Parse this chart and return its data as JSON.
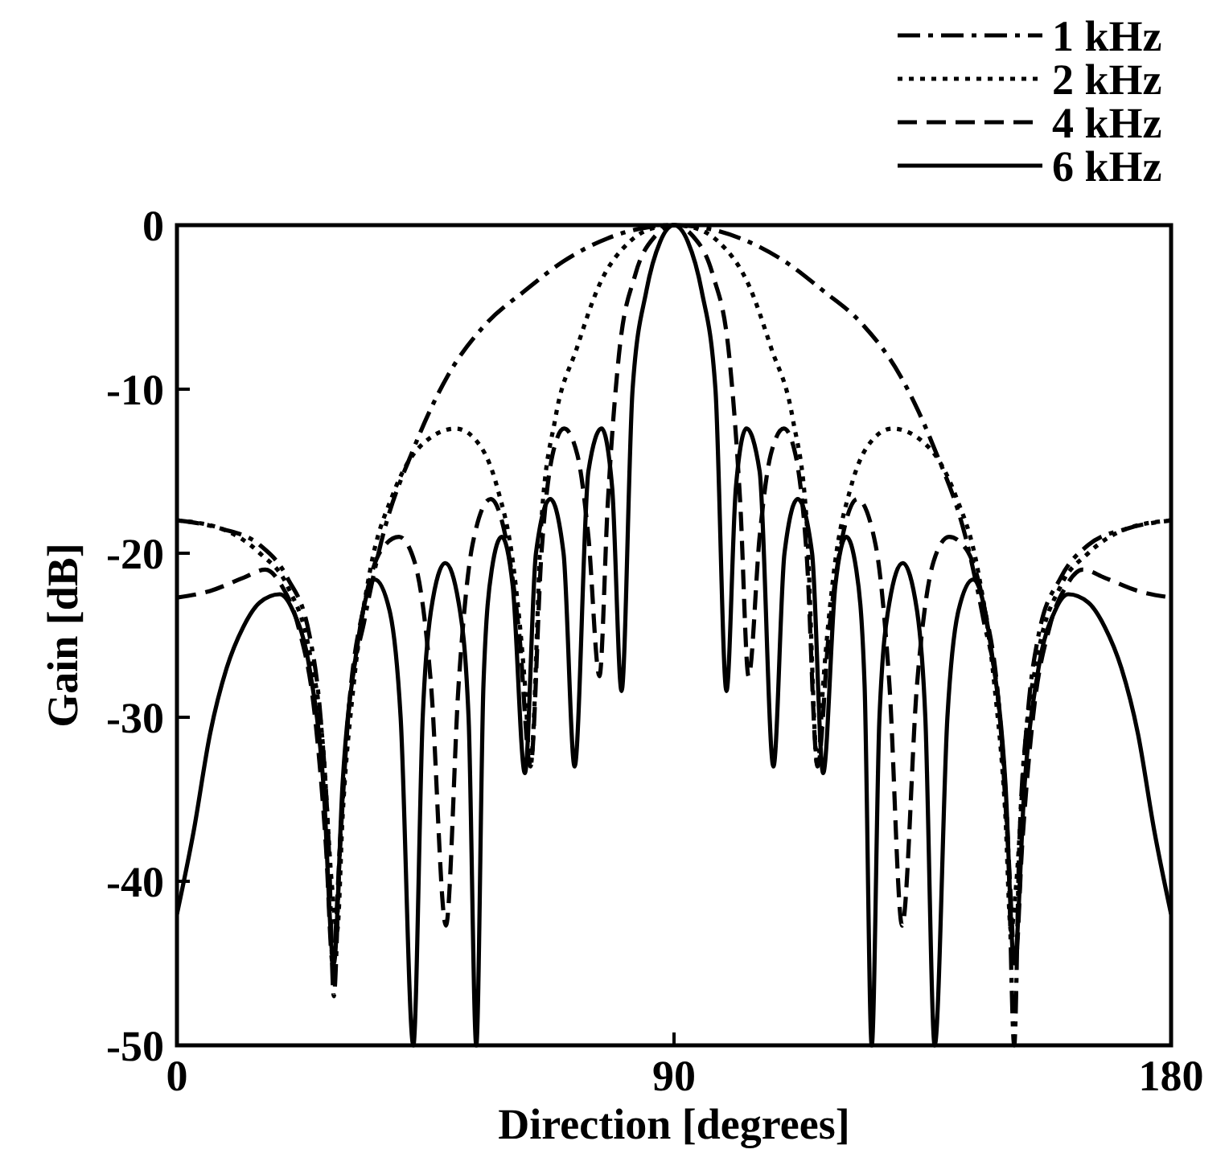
{
  "chart_data": {
    "type": "line",
    "xlabel": "Direction [degrees]",
    "ylabel": "Gain [dB]",
    "xlim": [
      0,
      180
    ],
    "xticks": [
      0,
      90,
      180
    ],
    "ylim": [
      -50,
      0
    ],
    "yticks": [
      0,
      -10,
      -20,
      -30,
      -40,
      -50
    ],
    "grid": false,
    "legend": "top right",
    "marker": "none",
    "series": [
      {
        "name": "1 kHz",
        "color": "#000000",
        "line_style": "dashdot",
        "x": [
          0,
          8,
          15,
          20,
          24,
          26,
          27.5,
          28.4,
          29.5,
          31,
          34,
          37,
          43,
          49,
          56,
          63,
          70,
          78,
          84,
          90,
          96,
          102,
          110,
          117,
          124,
          131,
          137,
          143,
          146,
          149,
          150.5,
          151.6,
          152.5,
          154,
          156,
          160,
          165,
          172,
          180
        ],
        "values": [
          -18,
          -18.5,
          -19.5,
          -21.5,
          -25,
          -30,
          -38,
          -47,
          -38,
          -30,
          -24,
          -19.3,
          -13.5,
          -9.2,
          -6,
          -4,
          -2.2,
          -0.8,
          -0.2,
          0,
          -0.2,
          -0.8,
          -2.2,
          -4,
          -6,
          -9.2,
          -13.5,
          -19.3,
          -24,
          -30,
          -38,
          -50,
          -38,
          -30,
          -25,
          -21.5,
          -19.5,
          -18.5,
          -18
        ]
      },
      {
        "name": "2 kHz",
        "color": "#000000",
        "line_style": "dotted",
        "x": [
          0,
          8,
          15,
          20,
          24,
          26.5,
          28,
          29,
          30,
          32,
          35,
          39,
          44,
          50.5,
          55,
          58,
          61,
          63,
          64,
          66,
          68.5,
          72.4,
          76.4,
          82,
          86,
          90,
          94,
          98,
          103.6,
          107.6,
          111.5,
          114,
          116,
          117,
          119,
          122,
          125,
          129.5,
          136,
          141,
          145,
          148,
          150,
          151,
          152,
          153.5,
          156,
          160,
          165,
          172,
          180
        ],
        "values": [
          -18,
          -18.5,
          -20,
          -22,
          -26,
          -32,
          -40,
          -43,
          -36,
          -28,
          -21,
          -16.5,
          -13.5,
          -12.4,
          -13.5,
          -16,
          -21,
          -28,
          -33,
          -18,
          -11.8,
          -7.5,
          -3.7,
          -1,
          -0.2,
          0,
          -0.2,
          -1,
          -3.7,
          -7.5,
          -11.8,
          -18,
          -33,
          -28,
          -21,
          -16,
          -13.5,
          -12.4,
          -13.5,
          -16.5,
          -21,
          -28,
          -36,
          -43,
          -40,
          -32,
          -26,
          -22,
          -20,
          -18.5,
          -18
        ]
      },
      {
        "name": "4 kHz",
        "color": "#000000",
        "line_style": "dashed",
        "x": [
          0,
          6,
          12,
          16,
          19,
          22,
          25,
          27,
          28.2,
          29.5,
          31,
          34,
          37,
          40.2,
          43,
          46,
          48.7,
          51,
          53.5,
          56.8,
          59.5,
          62,
          64,
          66,
          68,
          70.1,
          72.5,
          74.5,
          76.5,
          78,
          80,
          83,
          86.5,
          90,
          93.5,
          97,
          100,
          102,
          103.5,
          105.5,
          107.5,
          109.9,
          112,
          114,
          116,
          118,
          120.5,
          123.2,
          126.5,
          129,
          131.3,
          134,
          137,
          139.8,
          143,
          146,
          149,
          150.5,
          151.8,
          153,
          155,
          158,
          161,
          164,
          168,
          174,
          180
        ],
        "values": [
          -22.7,
          -22.3,
          -21.5,
          -21,
          -22,
          -24.5,
          -30,
          -38,
          -45,
          -38,
          -30,
          -23,
          -19.8,
          -19,
          -20.5,
          -28,
          -42.7,
          -28,
          -19.5,
          -16.7,
          -19,
          -25,
          -33,
          -20,
          -14,
          -12.4,
          -14,
          -19,
          -27.5,
          -17,
          -8,
          -3,
          -0.7,
          0,
          -0.7,
          -3,
          -8,
          -17,
          -27.5,
          -19,
          -14,
          -12.4,
          -14,
          -20,
          -33,
          -25,
          -19,
          -16.7,
          -19.5,
          -28,
          -42.7,
          -28,
          -20.5,
          -19,
          -19.8,
          -23,
          -30,
          -38,
          -45,
          -38,
          -30,
          -24.5,
          -22,
          -21,
          -21.5,
          -22.3,
          -22.7
        ]
      },
      {
        "name": "6 kHz",
        "color": "#000000",
        "line_style": "solid",
        "x": [
          0,
          3,
          6,
          9,
          12,
          15,
          18.6,
          21,
          24,
          26.5,
          28.4,
          30,
          32.5,
          35.8,
          38.5,
          40.5,
          42.8,
          44.5,
          46,
          48.6,
          51,
          52.8,
          54.2,
          55.5,
          57,
          58.8,
          60.8,
          63,
          65,
          67.6,
          70,
          72,
          74.5,
          76.9,
          78.8,
          80.5,
          82.5,
          85,
          87.5,
          90,
          92.5,
          95,
          97.5,
          99.5,
          101.2,
          103.1,
          105.5,
          108,
          110,
          112.4,
          115,
          117,
          119.2,
          121.2,
          123,
          124.5,
          125.8,
          127.2,
          129,
          131.4,
          134,
          135.5,
          137.2,
          139.5,
          141.5,
          144.2,
          147.5,
          150,
          151.6,
          153.5,
          156,
          159,
          161.4,
          165,
          168,
          171,
          174,
          177,
          180
        ],
        "values": [
          -42,
          -37,
          -31,
          -27,
          -24.5,
          -23,
          -22.5,
          -23.5,
          -27,
          -34,
          -45,
          -34,
          -26,
          -21.6,
          -23.5,
          -30,
          -50,
          -30,
          -23.5,
          -20.6,
          -23,
          -30,
          -50,
          -28,
          -21,
          -19,
          -22,
          -33.4,
          -20,
          -16.7,
          -20,
          -33,
          -15,
          -12.4,
          -16,
          -28.4,
          -10,
          -4,
          -1,
          0,
          -1,
          -4,
          -10,
          -28.4,
          -16,
          -12.4,
          -15,
          -33,
          -20,
          -16.7,
          -20,
          -33.4,
          -22,
          -19,
          -21,
          -28,
          -50,
          -30,
          -23,
          -20.6,
          -23.5,
          -30,
          -50,
          -30,
          -23.5,
          -21.6,
          -26,
          -34,
          -45,
          -34,
          -27,
          -23.5,
          -22.5,
          -23,
          -24.5,
          -27,
          -31,
          -37,
          -42
        ]
      }
    ]
  }
}
